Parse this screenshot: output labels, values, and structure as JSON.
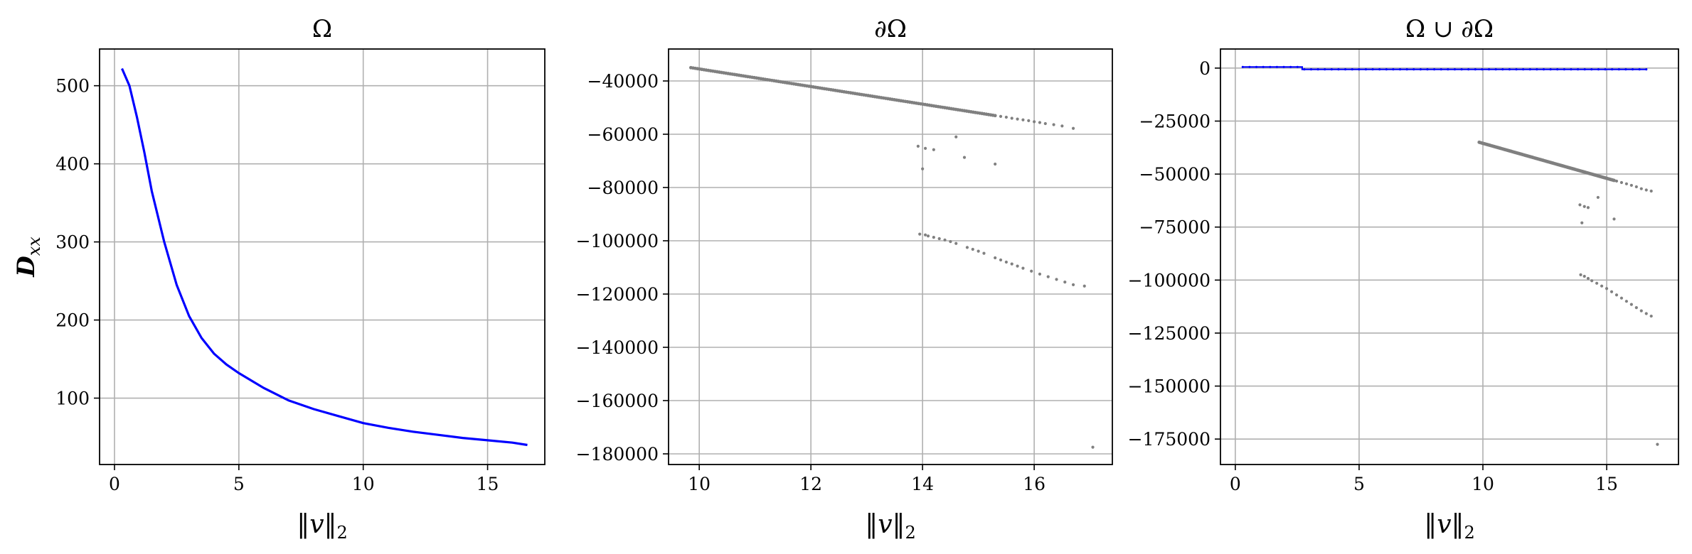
{
  "colors": {
    "blue": "#0000ff",
    "gray": "#808080",
    "grid": "#b0b0b0"
  },
  "chart_data": [
    {
      "type": "line",
      "title": "Ω",
      "xlabel": "‖v‖",
      "xlabel_sub": "2",
      "ylabel": "D",
      "ylabel_sub": "xx",
      "grid": true,
      "xlim": [
        -0.6,
        17.3
      ],
      "ylim": [
        15,
        547
      ],
      "xticks": [
        0,
        5,
        10,
        15
      ],
      "yticks": [
        100,
        200,
        300,
        400,
        500
      ],
      "series": [
        {
          "color": "#0000ff",
          "style": "line",
          "x": [
            0.3,
            0.6,
            0.9,
            1.2,
            1.5,
            2.0,
            2.5,
            3.0,
            3.5,
            4.0,
            4.5,
            5.0,
            6.0,
            7.0,
            8.0,
            9.0,
            10.0,
            11.0,
            12.0,
            13.0,
            14.0,
            15.0,
            16.0,
            16.6
          ],
          "y": [
            522,
            500,
            460,
            415,
            365,
            300,
            245,
            205,
            177,
            157,
            143,
            132,
            113,
            97,
            86,
            77,
            68,
            62,
            57,
            53,
            49,
            46,
            43,
            40
          ]
        }
      ]
    },
    {
      "type": "scatter",
      "title": "∂Ω",
      "xlabel": "‖v‖",
      "xlabel_sub": "2",
      "grid": true,
      "xlim": [
        9.45,
        17.4
      ],
      "ylim": [
        -184000,
        -28000
      ],
      "xticks": [
        10,
        12,
        14,
        16
      ],
      "yticks": [
        -40000,
        -60000,
        -80000,
        -100000,
        -120000,
        -140000,
        -160000,
        -180000
      ],
      "series": [
        {
          "color": "#808080",
          "style": "dense",
          "x_range": [
            9.85,
            15.3
          ],
          "y_range": [
            -35000,
            -53000
          ]
        },
        {
          "color": "#808080",
          "style": "points",
          "x": [
            15.4,
            15.5,
            15.6,
            15.7,
            15.8,
            15.9,
            16.0,
            16.1,
            16.2,
            16.35,
            16.5,
            16.7,
            13.92,
            14.05,
            14.2,
            14.6,
            14.75,
            15.3,
            14.0,
            13.95,
            14.05,
            14.1,
            14.2,
            14.3,
            14.4,
            14.5,
            14.6,
            14.8,
            14.9,
            15.0,
            15.1,
            15.3,
            15.4,
            15.5,
            15.6,
            15.7,
            15.8,
            15.95,
            16.1,
            16.25,
            16.4,
            16.55,
            16.7,
            16.9,
            17.05
          ],
          "y": [
            -53300,
            -53600,
            -54000,
            -54300,
            -54600,
            -54900,
            -55300,
            -55600,
            -56000,
            -56400,
            -56900,
            -57800,
            -64500,
            -65300,
            -65800,
            -61000,
            -68700,
            -71200,
            -73000,
            -97500,
            -97800,
            -98200,
            -98700,
            -99200,
            -99700,
            -100300,
            -101000,
            -102500,
            -103200,
            -103900,
            -104700,
            -106400,
            -107200,
            -108000,
            -108700,
            -109500,
            -110300,
            -111400,
            -112500,
            -113500,
            -114500,
            -115500,
            -116500,
            -117000,
            -177500
          ]
        }
      ]
    },
    {
      "type": "scatter",
      "title": "Ω ∪ ∂Ω",
      "xlabel": "‖v‖",
      "xlabel_sub": "2",
      "grid": true,
      "xlim": [
        -0.6,
        17.9
      ],
      "ylim": [
        -187000,
        9000
      ],
      "xticks": [
        0,
        5,
        10,
        15
      ],
      "yticks": [
        0,
        -25000,
        -50000,
        -75000,
        -100000,
        -125000,
        -150000,
        -175000
      ],
      "series": [
        {
          "color": "#0000ff",
          "style": "band",
          "x": [
            0.3,
            2.7,
            2.7,
            16.6
          ],
          "y": [
            522,
            522,
            -600,
            -600
          ]
        },
        {
          "color": "#808080",
          "style": "dense",
          "x_range": [
            9.85,
            15.3
          ],
          "y_range": [
            -35000,
            -53000
          ]
        },
        {
          "color": "#808080",
          "style": "points",
          "x": [
            15.4,
            15.6,
            15.8,
            16.0,
            16.2,
            16.4,
            16.6,
            16.8,
            13.92,
            14.1,
            14.25,
            14.65,
            15.3,
            14.0,
            13.95,
            14.1,
            14.25,
            14.4,
            14.6,
            14.8,
            15.0,
            15.2,
            15.4,
            15.6,
            15.8,
            16.0,
            16.2,
            16.4,
            16.6,
            16.8,
            17.05
          ],
          "y": [
            -53300,
            -54000,
            -54600,
            -55300,
            -56000,
            -56900,
            -57500,
            -58000,
            -64500,
            -65300,
            -65800,
            -61000,
            -71200,
            -73000,
            -97500,
            -98200,
            -99200,
            -100300,
            -101500,
            -102800,
            -104000,
            -105500,
            -107000,
            -108500,
            -110000,
            -111500,
            -113000,
            -114500,
            -115800,
            -117000,
            -177500
          ]
        }
      ]
    }
  ]
}
